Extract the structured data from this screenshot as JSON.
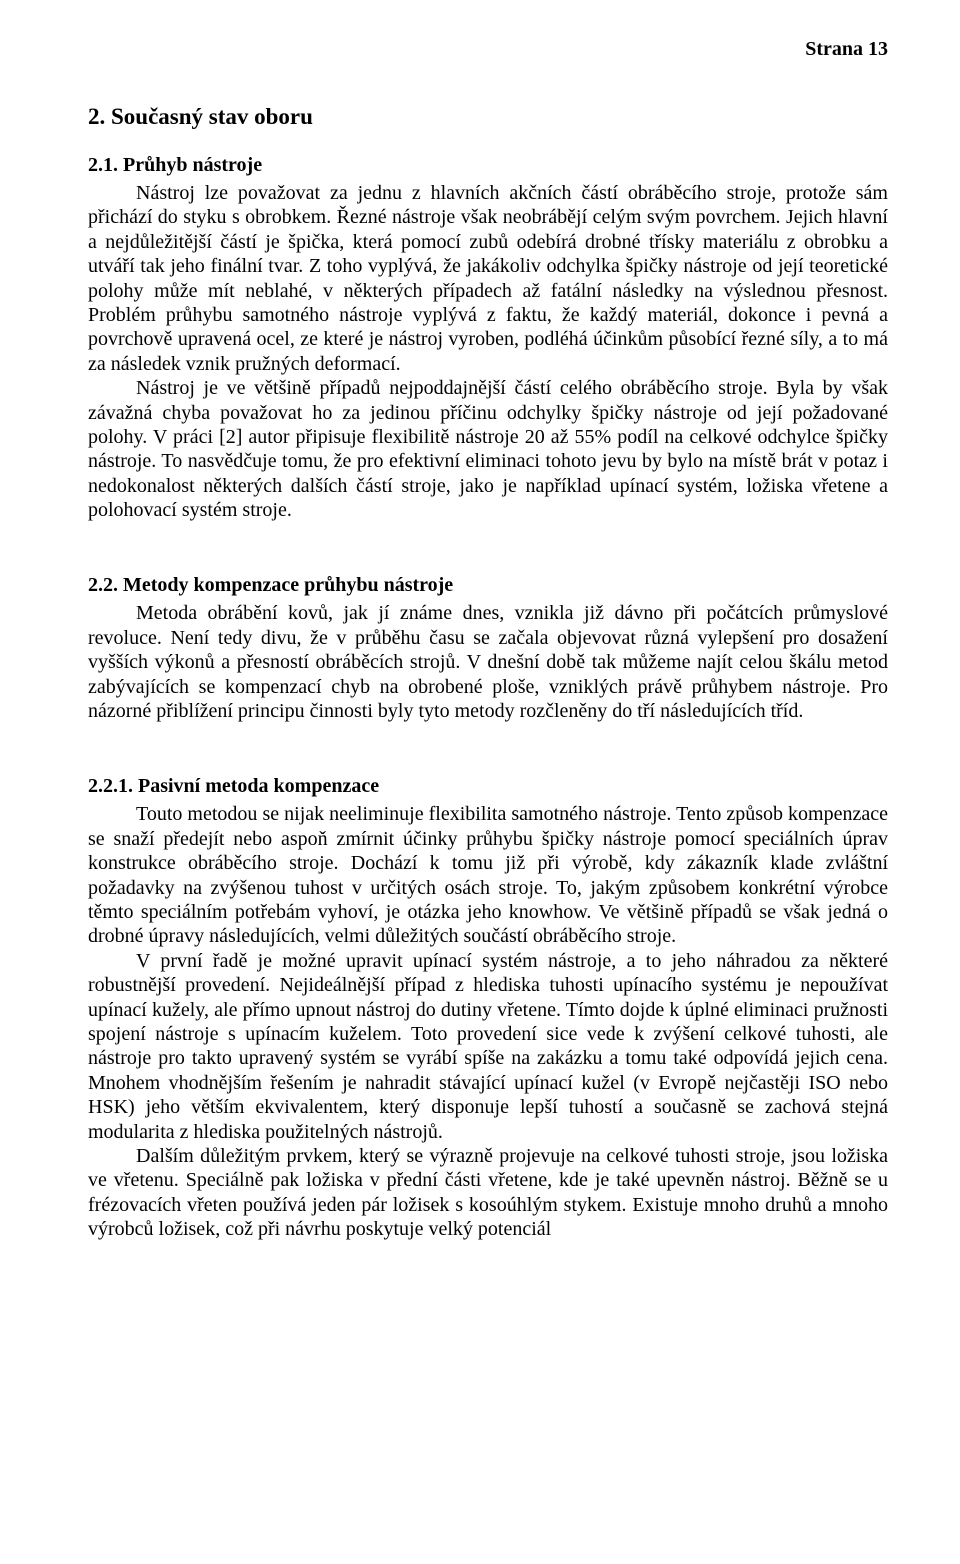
{
  "pageNumber": "Strana 13",
  "heading1": "2. Současný stav oboru",
  "section21": {
    "heading": "2.1. Průhyb nástroje",
    "p1": "Nástroj lze považovat za jednu z hlavních akčních částí obráběcího stroje, protože sám přichází do styku s obrobkem. Řezné nástroje však neobrábějí celým svým povrchem. Jejich hlavní a nejdůležitější částí je špička, která pomocí zubů odebírá drobné třísky materiálu z obrobku a utváří tak jeho finální tvar. Z toho vyplývá, že jakákoliv odchylka špičky nástroje od její teoretické polohy může mít neblahé, v některých případech až fatální následky na výslednou přesnost. Problém průhybu samotného nástroje vyplývá z faktu, že každý materiál, dokonce i pevná a povrchově upravená ocel, ze které je nástroj vyroben, podléhá účinkům působící řezné síly, a to má za následek vznik pružných deformací.",
    "p2": "Nástroj je ve většině případů nejpoddajnější částí celého obráběcího stroje. Byla by však závažná chyba považovat ho za jedinou příčinu odchylky špičky nástroje od její požadované polohy. V práci [2] autor připisuje flexibilitě nástroje 20 až 55% podíl na celkové odchylce špičky nástroje. To nasvědčuje tomu, že pro efektivní eliminaci tohoto jevu by bylo na místě brát v potaz i nedokonalost některých dalších částí stroje, jako je například upínací systém, ložiska vřetene a polohovací systém stroje."
  },
  "section22": {
    "heading": "2.2. Metody kompenzace průhybu nástroje",
    "p1": "Metoda obrábění kovů, jak jí známe dnes, vznikla již dávno při počátcích průmyslové revoluce. Není tedy divu, že v průběhu času se začala objevovat různá vylepšení pro dosažení vyšších výkonů a přesností obráběcích strojů. V dnešní době tak můžeme najít celou škálu metod zabývajících se kompenzací chyb na obrobené ploše, vzniklých právě průhybem nástroje. Pro názorné přiblížení principu činnosti byly tyto metody rozčleněny do tří následujících tříd."
  },
  "section221": {
    "heading": "2.2.1. Pasivní metoda kompenzace",
    "p1": "Touto metodou se nijak neeliminuje flexibilita samotného nástroje. Tento způsob kompenzace se snaží předejít nebo aspoň zmírnit účinky průhybu špičky nástroje pomocí speciálních úprav konstrukce obráběcího stroje. Dochází k tomu již při výrobě, kdy zákazník klade zvláštní požadavky na zvýšenou tuhost v určitých osách stroje. To, jakým způsobem konkrétní výrobce těmto speciálním potřebám vyhoví, je otázka jeho knowhow. Ve většině případů se však jedná o drobné úpravy následujících, velmi důležitých součástí obráběcího stroje.",
    "p2": "V první řadě je možné upravit upínací systém nástroje, a to jeho náhradou za některé robustnější provedení. Nejideálnější případ z hlediska tuhosti upínacího systému je nepoužívat upínací kužely, ale přímo upnout nástroj do dutiny vřetene. Tímto dojde k úplné eliminaci pružnosti spojení nástroje s upínacím kuželem. Toto provedení sice vede k zvýšení celkové tuhosti, ale nástroje pro takto upravený systém se vyrábí spíše na zakázku a tomu také odpovídá jejich cena. Mnohem vhodnějším řešením je nahradit stávající upínací kužel (v Evropě nejčastěji ISO nebo HSK) jeho větším ekvivalentem, který disponuje lepší tuhostí a současně se zachová stejná modularita z hlediska použitelných nástrojů.",
    "p3": "Dalším důležitým prvkem, který se výrazně projevuje na celkové tuhosti stroje, jsou ložiska ve vřetenu. Speciálně pak ložiska v přední části vřetene, kde je také upevněn nástroj. Běžně se u frézovacích vřeten používá jeden pár ložisek s kosoúhlým stykem. Existuje mnoho druhů a mnoho výrobců ložisek, což při návrhu poskytuje velký potenciál"
  }
}
